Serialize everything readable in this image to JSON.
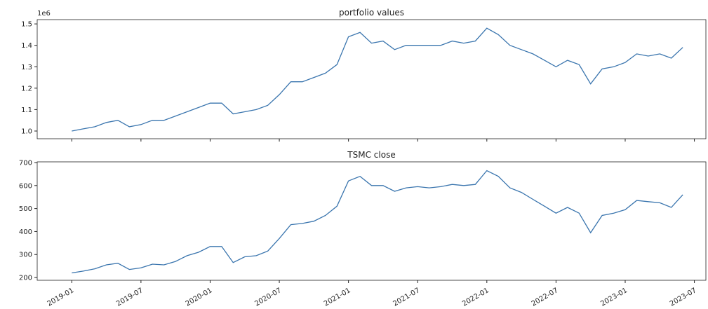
{
  "chart_data": [
    {
      "type": "line",
      "title": "portfolio values",
      "offset_label": "1e6",
      "color": "#3a75ae",
      "x": [
        "2019-01",
        "2019-02",
        "2019-03",
        "2019-04",
        "2019-05",
        "2019-06",
        "2019-07",
        "2019-08",
        "2019-09",
        "2019-10",
        "2019-11",
        "2019-12",
        "2020-01",
        "2020-02",
        "2020-03",
        "2020-04",
        "2020-05",
        "2020-06",
        "2020-07",
        "2020-08",
        "2020-09",
        "2020-10",
        "2020-11",
        "2020-12",
        "2021-01",
        "2021-02",
        "2021-03",
        "2021-04",
        "2021-05",
        "2021-06",
        "2021-07",
        "2021-08",
        "2021-09",
        "2021-10",
        "2021-11",
        "2021-12",
        "2022-01",
        "2022-02",
        "2022-03",
        "2022-04",
        "2022-05",
        "2022-06",
        "2022-07",
        "2022-08",
        "2022-09",
        "2022-10",
        "2022-11",
        "2022-12",
        "2023-01",
        "2023-02",
        "2023-03",
        "2023-04",
        "2023-05",
        "2023-06"
      ],
      "values": [
        1.0,
        1.01,
        1.02,
        1.04,
        1.05,
        1.02,
        1.03,
        1.05,
        1.05,
        1.07,
        1.09,
        1.11,
        1.13,
        1.13,
        1.08,
        1.09,
        1.1,
        1.12,
        1.17,
        1.23,
        1.23,
        1.25,
        1.27,
        1.31,
        1.44,
        1.46,
        1.41,
        1.42,
        1.38,
        1.4,
        1.4,
        1.4,
        1.4,
        1.42,
        1.41,
        1.42,
        1.48,
        1.45,
        1.4,
        1.38,
        1.36,
        1.33,
        1.3,
        1.33,
        1.31,
        1.22,
        1.29,
        1.3,
        1.32,
        1.36,
        1.35,
        1.36,
        1.34,
        1.39
      ],
      "xlim": [
        "2018-10",
        "2023-08"
      ],
      "ylim": [
        0.964,
        1.52
      ],
      "yticks": [
        {
          "value": 1,
          "label": "1.0"
        },
        1.1,
        1.2,
        1.3,
        1.4,
        1.5
      ]
    },
    {
      "type": "line",
      "title": "TSMC close",
      "color": "#3a75ae",
      "x": [
        "2019-01",
        "2019-02",
        "2019-03",
        "2019-04",
        "2019-05",
        "2019-06",
        "2019-07",
        "2019-08",
        "2019-09",
        "2019-10",
        "2019-11",
        "2019-12",
        "2020-01",
        "2020-02",
        "2020-03",
        "2020-04",
        "2020-05",
        "2020-06",
        "2020-07",
        "2020-08",
        "2020-09",
        "2020-10",
        "2020-11",
        "2020-12",
        "2021-01",
        "2021-02",
        "2021-03",
        "2021-04",
        "2021-05",
        "2021-06",
        "2021-07",
        "2021-08",
        "2021-09",
        "2021-10",
        "2021-11",
        "2021-12",
        "2022-01",
        "2022-02",
        "2022-03",
        "2022-04",
        "2022-05",
        "2022-06",
        "2022-07",
        "2022-08",
        "2022-09",
        "2022-10",
        "2022-11",
        "2022-12",
        "2023-01",
        "2023-02",
        "2023-03",
        "2023-04",
        "2023-05",
        "2023-06"
      ],
      "values": [
        220,
        228,
        238,
        255,
        262,
        235,
        242,
        258,
        255,
        270,
        295,
        310,
        335,
        335,
        265,
        290,
        295,
        315,
        370,
        430,
        435,
        445,
        470,
        510,
        620,
        640,
        600,
        600,
        575,
        590,
        595,
        590,
        595,
        605,
        600,
        605,
        665,
        640,
        590,
        570,
        540,
        510,
        480,
        505,
        480,
        395,
        470,
        480,
        495,
        535,
        530,
        525,
        505,
        560
      ],
      "xlim": [
        "2018-10",
        "2023-08"
      ],
      "ylim": [
        188,
        703
      ],
      "yticks": [
        200,
        300,
        400,
        500,
        600,
        700
      ],
      "xticks": [
        "2019-01",
        "2019-07",
        "2020-01",
        "2020-07",
        "2021-01",
        "2021-07",
        "2022-01",
        "2022-07",
        "2023-01",
        "2023-07"
      ]
    }
  ]
}
